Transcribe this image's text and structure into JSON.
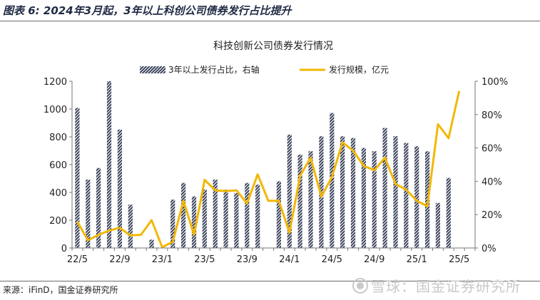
{
  "figure_title": "图表 6: 2024年3月起，3年以上科创公司债券发行占比提升",
  "source": "来源：iFinD，国金证券研究所",
  "watermark": "雪球：国金证券研究所",
  "colors": {
    "bar": "#2c3550",
    "line": "#f2b705",
    "axis": "#777777",
    "title": "#1f2a44"
  },
  "chart_data": {
    "type": "bar+line",
    "title": "科技创新公司债券发行情况",
    "categories": [
      "22/5",
      "22/6",
      "22/7",
      "22/8",
      "22/9",
      "22/10",
      "22/11",
      "22/12",
      "23/1",
      "23/2",
      "23/3",
      "23/4",
      "23/5",
      "23/6",
      "23/7",
      "23/8",
      "23/9",
      "23/10",
      "23/11",
      "23/12",
      "24/1",
      "24/2",
      "24/3",
      "24/4",
      "24/5",
      "24/6",
      "24/7",
      "24/8",
      "24/9",
      "24/10",
      "24/11",
      "24/12",
      "25/1",
      "25/2",
      "25/3",
      "25/4",
      "25/5",
      "25/6"
    ],
    "x_tick_labels": [
      {
        "index": 0,
        "label": "22/5"
      },
      {
        "index": 4,
        "label": "22/9"
      },
      {
        "index": 8,
        "label": "23/1"
      },
      {
        "index": 12,
        "label": "23/5"
      },
      {
        "index": 16,
        "label": "23/9"
      },
      {
        "index": 20,
        "label": "24/1"
      },
      {
        "index": 24,
        "label": "24/5"
      },
      {
        "index": 28,
        "label": "24/9"
      },
      {
        "index": 32,
        "label": "25/1"
      },
      {
        "index": 36,
        "label": "25/5"
      }
    ],
    "series": [
      {
        "name": "3年以上发行占比，右轴",
        "type": "bar",
        "axis": "right",
        "unit": "%",
        "values": [
          84,
          41,
          48,
          100,
          71,
          26,
          0,
          5,
          0,
          29,
          39,
          31,
          35,
          41,
          35,
          33,
          39,
          38,
          0,
          40,
          68,
          56,
          58,
          67,
          81,
          67,
          66,
          60,
          58,
          72,
          67,
          63,
          61,
          58,
          27,
          42,
          0,
          0
        ]
      },
      {
        "name": "发行规模，亿元",
        "type": "line",
        "axis": "left",
        "unit": "亿元",
        "values": [
          190,
          55,
          95,
          125,
          145,
          90,
          95,
          200,
          5,
          45,
          340,
          95,
          490,
          415,
          410,
          415,
          320,
          530,
          340,
          340,
          110,
          520,
          650,
          370,
          510,
          760,
          700,
          590,
          560,
          650,
          460,
          420,
          340,
          300,
          890,
          790,
          1130,
          null
        ]
      }
    ],
    "y_left": {
      "min": 0,
      "max": 1200,
      "ticks": [
        "0",
        "200",
        "400",
        "600",
        "800",
        "1000",
        "1200"
      ]
    },
    "y_right": {
      "min": 0,
      "max": 100,
      "ticks": [
        "0%",
        "20%",
        "40%",
        "60%",
        "80%",
        "100%"
      ]
    },
    "legend": {
      "position": "top"
    }
  }
}
